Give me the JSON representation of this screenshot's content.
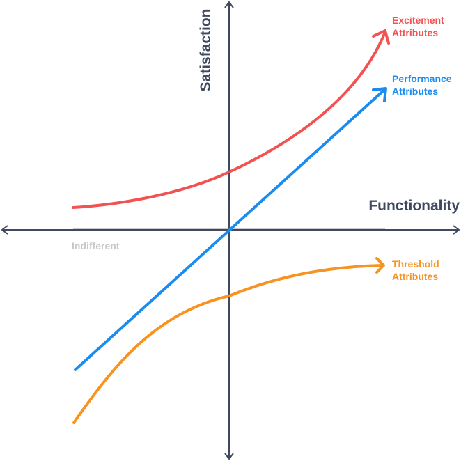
{
  "axes": {
    "x_label": "Functionality",
    "y_label": "Satisfaction",
    "axis_color": "#3f4a60"
  },
  "baseline": {
    "label": "Indifferent",
    "color": "#c8c8c8"
  },
  "curves": [
    {
      "name": "excitement",
      "line1": "Excitement",
      "line2": "Attributes",
      "color": "#f25252"
    },
    {
      "name": "performance",
      "line1": "Performance",
      "line2": "Attributes",
      "color": "#1a8cf0"
    },
    {
      "name": "threshold",
      "line1": "Threshold",
      "line2": "Attributes",
      "color": "#f7931e"
    }
  ]
}
